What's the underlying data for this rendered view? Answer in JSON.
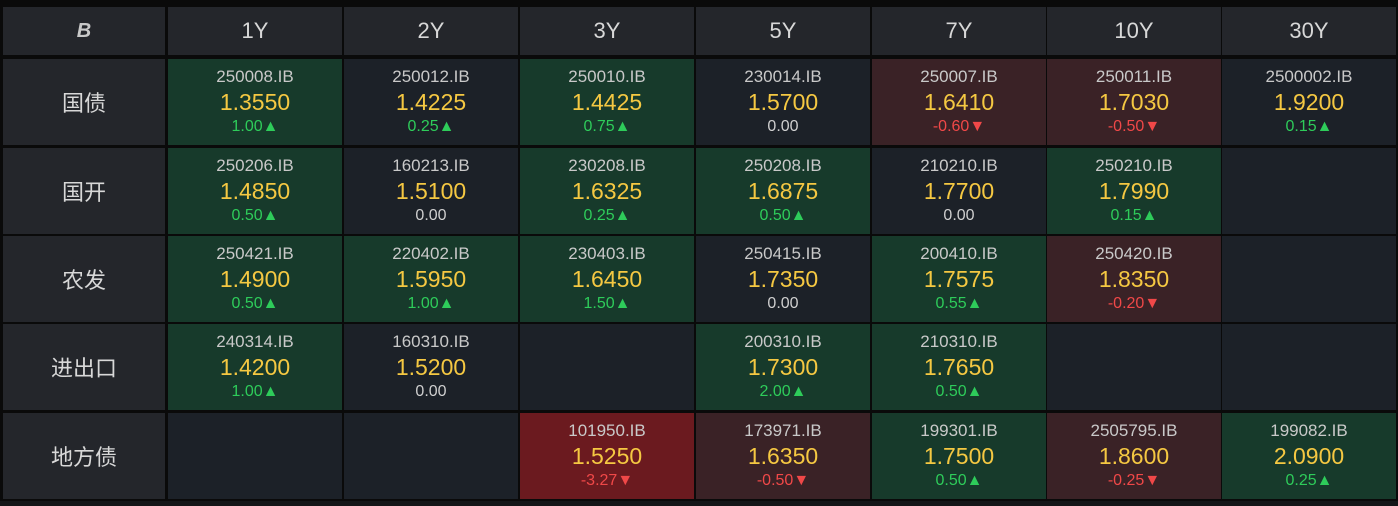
{
  "logo_text": "B",
  "columns": [
    "1Y",
    "2Y",
    "3Y",
    "5Y",
    "7Y",
    "10Y",
    "30Y"
  ],
  "rows": [
    {
      "label": "国债",
      "cells": [
        {
          "code": "250008.IB",
          "yield": "1.3550",
          "change": "1.00▲",
          "dir": "up",
          "tone": "green"
        },
        {
          "code": "250012.IB",
          "yield": "1.4225",
          "change": "0.25▲",
          "dir": "up",
          "tone": "neutral"
        },
        {
          "code": "250010.IB",
          "yield": "1.4425",
          "change": "0.75▲",
          "dir": "up",
          "tone": "green"
        },
        {
          "code": "230014.IB",
          "yield": "1.5700",
          "change": "0.00",
          "dir": "flat",
          "tone": "neutral"
        },
        {
          "code": "250007.IB",
          "yield": "1.6410",
          "change": "-0.60▼",
          "dir": "down",
          "tone": "red"
        },
        {
          "code": "250011.IB",
          "yield": "1.7030",
          "change": "-0.50▼",
          "dir": "down",
          "tone": "red"
        },
        {
          "code": "2500002.IB",
          "yield": "1.9200",
          "change": "0.15▲",
          "dir": "up",
          "tone": "neutral"
        }
      ]
    },
    {
      "label": "国开",
      "cells": [
        {
          "code": "250206.IB",
          "yield": "1.4850",
          "change": "0.50▲",
          "dir": "up",
          "tone": "green"
        },
        {
          "code": "160213.IB",
          "yield": "1.5100",
          "change": "0.00",
          "dir": "flat",
          "tone": "neutral"
        },
        {
          "code": "230208.IB",
          "yield": "1.6325",
          "change": "0.25▲",
          "dir": "up",
          "tone": "green"
        },
        {
          "code": "250208.IB",
          "yield": "1.6875",
          "change": "0.50▲",
          "dir": "up",
          "tone": "green"
        },
        {
          "code": "210210.IB",
          "yield": "1.7700",
          "change": "0.00",
          "dir": "flat",
          "tone": "neutral"
        },
        {
          "code": "250210.IB",
          "yield": "1.7990",
          "change": "0.15▲",
          "dir": "up",
          "tone": "green"
        },
        null
      ]
    },
    {
      "label": "农发",
      "cells": [
        {
          "code": "250421.IB",
          "yield": "1.4900",
          "change": "0.50▲",
          "dir": "up",
          "tone": "green"
        },
        {
          "code": "220402.IB",
          "yield": "1.5950",
          "change": "1.00▲",
          "dir": "up",
          "tone": "green"
        },
        {
          "code": "230403.IB",
          "yield": "1.6450",
          "change": "1.50▲",
          "dir": "up",
          "tone": "green"
        },
        {
          "code": "250415.IB",
          "yield": "1.7350",
          "change": "0.00",
          "dir": "flat",
          "tone": "neutral"
        },
        {
          "code": "200410.IB",
          "yield": "1.7575",
          "change": "0.55▲",
          "dir": "up",
          "tone": "green"
        },
        {
          "code": "250420.IB",
          "yield": "1.8350",
          "change": "-0.20▼",
          "dir": "down",
          "tone": "red"
        },
        null
      ]
    },
    {
      "label": "进出口",
      "cells": [
        {
          "code": "240314.IB",
          "yield": "1.4200",
          "change": "1.00▲",
          "dir": "up",
          "tone": "green"
        },
        {
          "code": "160310.IB",
          "yield": "1.5200",
          "change": "0.00",
          "dir": "flat",
          "tone": "neutral"
        },
        null,
        {
          "code": "200310.IB",
          "yield": "1.7300",
          "change": "2.00▲",
          "dir": "up",
          "tone": "green"
        },
        {
          "code": "210310.IB",
          "yield": "1.7650",
          "change": "0.50▲",
          "dir": "up",
          "tone": "green"
        },
        null,
        null
      ]
    },
    {
      "label": "地方债",
      "cells": [
        null,
        null,
        {
          "code": "101950.IB",
          "yield": "1.5250",
          "change": "-3.27▼",
          "dir": "down",
          "tone": "darkred"
        },
        {
          "code": "173971.IB",
          "yield": "1.6350",
          "change": "-0.50▼",
          "dir": "down",
          "tone": "red"
        },
        {
          "code": "199301.IB",
          "yield": "1.7500",
          "change": "0.50▲",
          "dir": "up",
          "tone": "green"
        },
        {
          "code": "2505795.IB",
          "yield": "1.8600",
          "change": "-0.25▼",
          "dir": "down",
          "tone": "red"
        },
        {
          "code": "199082.IB",
          "yield": "2.0900",
          "change": "0.25▲",
          "dir": "up",
          "tone": "green"
        }
      ]
    }
  ]
}
